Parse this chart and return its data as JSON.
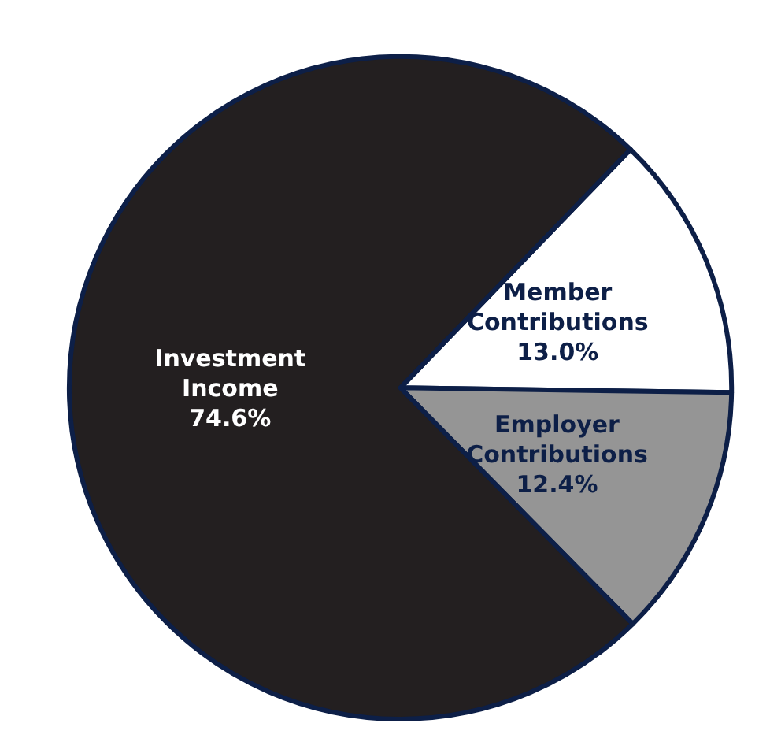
{
  "chart_data": {
    "type": "pie",
    "categories": [
      "Member\nContributions",
      "Employer\nContributions",
      "Investment\nIncome"
    ],
    "values": [
      13.0,
      12.4,
      74.6
    ],
    "colors": [
      "#ffffff",
      "#959595",
      "#231f20"
    ],
    "value_labels": [
      "13.0%",
      "12.4%",
      "74.6%"
    ],
    "legend": false
  }
}
